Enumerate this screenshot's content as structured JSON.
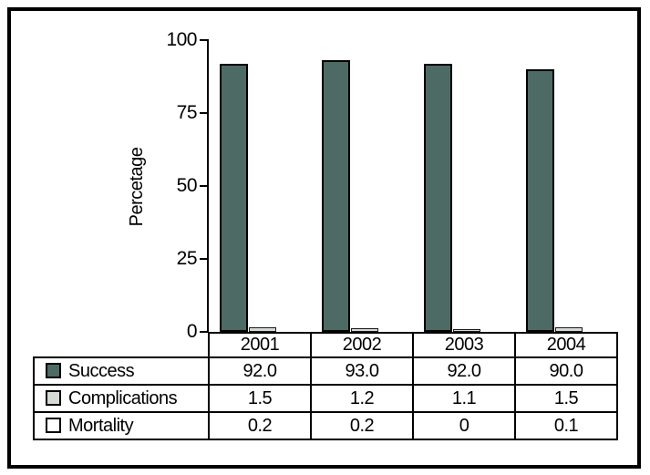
{
  "chart_data": {
    "type": "bar",
    "title": "",
    "xlabel": "",
    "ylabel": "Percetage",
    "categories": [
      "2001",
      "2002",
      "2003",
      "2004"
    ],
    "series": [
      {
        "key": "success",
        "name": "Success",
        "color": "#4d6a64",
        "values": [
          92.0,
          93.0,
          92.0,
          90.0
        ],
        "display": [
          "92.0",
          "93.0",
          "92.0",
          "90.0"
        ]
      },
      {
        "key": "complications",
        "name": "Complications",
        "color": "#d6dad5",
        "values": [
          1.5,
          1.2,
          1.1,
          1.5
        ],
        "display": [
          "1.5",
          "1.2",
          "1.1",
          "1.5"
        ]
      },
      {
        "key": "mortality",
        "name": "Mortality",
        "color": "#ffffff",
        "values": [
          0.2,
          0.2,
          0,
          0.1
        ],
        "display": [
          "0.2",
          "0.2",
          "0",
          "0.1"
        ]
      }
    ],
    "ylim": [
      0,
      100
    ],
    "yticks": [
      0,
      25,
      50,
      75,
      100
    ],
    "grid": false,
    "legend_position": "table-left",
    "axis_color": "#000000"
  }
}
